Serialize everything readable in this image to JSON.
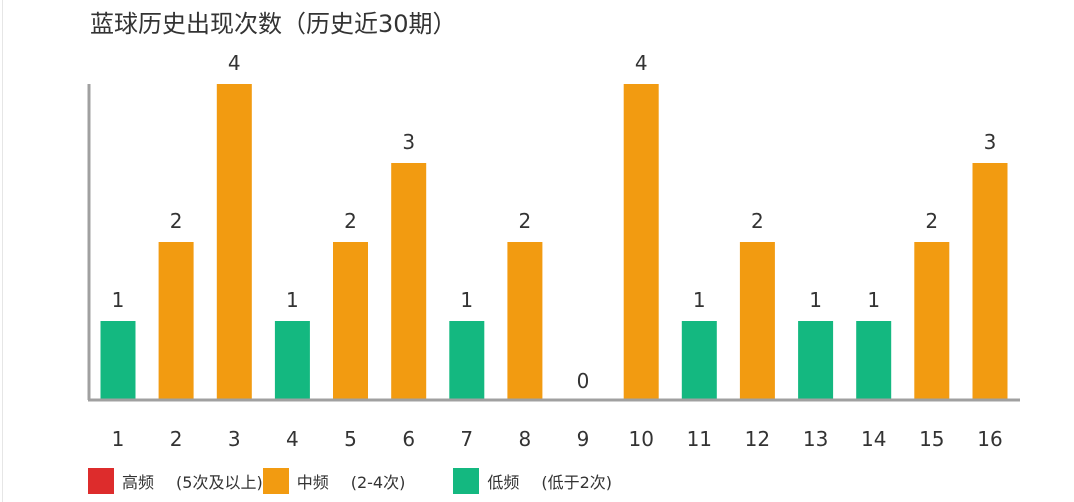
{
  "chart_data": {
    "type": "bar",
    "title": "蓝球历史出现次数（历史近30期）",
    "xlabel": "",
    "ylabel": "",
    "categories": [
      "1",
      "2",
      "3",
      "4",
      "5",
      "6",
      "7",
      "8",
      "9",
      "10",
      "11",
      "12",
      "13",
      "14",
      "15",
      "16"
    ],
    "values": [
      1,
      2,
      4,
      1,
      2,
      3,
      1,
      2,
      0,
      4,
      1,
      2,
      1,
      1,
      2,
      3
    ],
    "ylim": [
      0,
      4
    ],
    "grid": false,
    "data_labels": true,
    "legend_position": "bottom-left",
    "legend": [
      {
        "name": "高频",
        "range": "(5次及以上)",
        "color": "#dd2c2c"
      },
      {
        "name": "中频",
        "range": "(2-4次)",
        "color": "#f29b11"
      },
      {
        "name": "低频",
        "range": "(低于2次)",
        "color": "#14b880"
      }
    ],
    "colors": {
      "high": "#dd2c2c",
      "mid": "#f29b11",
      "low": "#14b880",
      "axis": "#a0a0a0",
      "text": "#333333"
    }
  }
}
